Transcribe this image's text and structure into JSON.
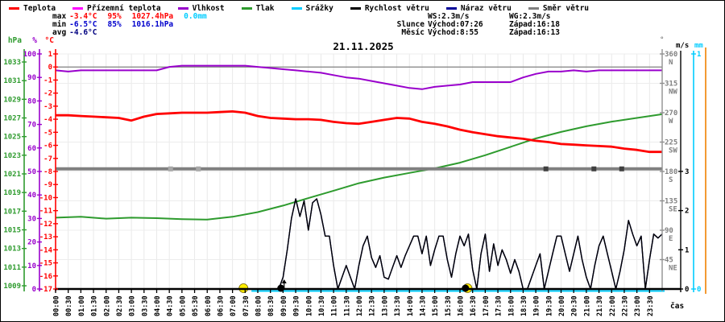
{
  "title": "21.11.2025",
  "xlabel": "čas",
  "legend": {
    "items": [
      {
        "label": "Teplota",
        "color": "#ff0000"
      },
      {
        "label": "Přízemní teplota",
        "color": "#ff00ff"
      },
      {
        "label": "Vlhkost",
        "color": "#9900cc"
      },
      {
        "label": "Tlak",
        "color": "#2e9b2e"
      },
      {
        "label": "Srážky",
        "color": "#00ccff"
      },
      {
        "label": "Rychlost větru",
        "color": "#000000"
      },
      {
        "label": "Náraz větru",
        "color": "#000099"
      },
      {
        "label": "Směr větru",
        "color": "#808080"
      }
    ]
  },
  "stats": {
    "rows": [
      {
        "label": "max",
        "cells": [
          {
            "text": "-3.4°C",
            "color": "#ff0000"
          },
          {
            "text": "95%",
            "color": "#ff0000"
          },
          {
            "text": "1027.4hPa",
            "color": "#ff0000"
          },
          {
            "text": "0.0mm",
            "color": "#00ccff"
          }
        ]
      },
      {
        "label": "min",
        "cells": [
          {
            "text": "-6.5°C",
            "color": "#0000cc"
          },
          {
            "text": "85%",
            "color": "#0000cc"
          },
          {
            "text": "1016.1hPa",
            "color": "#0000cc"
          }
        ]
      },
      {
        "label": "avg",
        "cells": [
          {
            "text": "-4.6°C",
            "color": "#000080"
          }
        ]
      }
    ]
  },
  "astro": {
    "wind": {
      "ws": "WS:2.3m/s",
      "wg": "WG:2.3m/s"
    },
    "rows": [
      {
        "label": "Slunce",
        "rise": "Východ:07:26",
        "set": "Západ:16:18"
      },
      {
        "label": "Měsíc",
        "rise": "Východ:8:55",
        "set": "Západ:16:13"
      }
    ]
  },
  "chart_data": {
    "type": "line",
    "title": "21.11.2025",
    "xlabel": "čas",
    "x_range_hours": [
      0,
      24
    ],
    "grid": true,
    "time_ticks": [
      "00:00",
      "00:30",
      "01:00",
      "01:30",
      "02:00",
      "02:30",
      "03:00",
      "03:30",
      "04:00",
      "04:30",
      "05:00",
      "05:30",
      "06:00",
      "06:30",
      "07:00",
      "07:30",
      "08:00",
      "08:30",
      "09:00",
      "09:30",
      "10:00",
      "10:30",
      "11:00",
      "11:30",
      "12:00",
      "12:30",
      "13:00",
      "13:30",
      "14:00",
      "14:30",
      "15:00",
      "15:30",
      "16:00",
      "16:30",
      "17:00",
      "17:30",
      "18:00",
      "18:30",
      "19:00",
      "19:30",
      "20:00",
      "20:30",
      "21:00",
      "21:30",
      "22:00",
      "22:30",
      "23:00",
      "23:30"
    ],
    "axes": {
      "hpa": {
        "unit": "hPa",
        "color": "#2e9b2e",
        "ticks": [
          1009,
          1011,
          1013,
          1015,
          1017,
          1019,
          1021,
          1023,
          1025,
          1027,
          1029,
          1031,
          1033
        ]
      },
      "pct": {
        "unit": "%",
        "color": "#9900cc",
        "ticks": [
          0,
          10,
          20,
          30,
          40,
          50,
          60,
          70,
          80,
          90,
          100
        ]
      },
      "degc": {
        "unit": "°C",
        "color": "#ff0000",
        "ticks": [
          1,
          0,
          -1,
          -2,
          -3,
          -4,
          -5,
          -6,
          -7,
          -8,
          -9,
          -10,
          -11,
          -12,
          -13,
          -14,
          -15,
          -16,
          -17
        ]
      },
      "dir": {
        "unit": "°",
        "color": "#808080",
        "ticks": [
          [
            360,
            "N"
          ],
          [
            315,
            "NW"
          ],
          [
            270,
            "W"
          ],
          [
            225,
            "SW"
          ],
          [
            180,
            "S"
          ],
          [
            135,
            "SE"
          ],
          [
            90,
            "E"
          ],
          [
            45,
            "NE"
          ]
        ]
      },
      "ms": {
        "unit": "m/s",
        "color": "#000000",
        "ticks": [
          0,
          1,
          2,
          3
        ]
      },
      "mm": {
        "unit": "mm",
        "color": "#00ccff",
        "ticks": [
          0,
          1
        ]
      }
    },
    "series": [
      {
        "name": "Teplota",
        "unit": "°C",
        "color": "#ff0000",
        "width": 2.8,
        "interval_minutes": 30,
        "values": [
          -3.7,
          -3.7,
          -3.75,
          -3.8,
          -3.85,
          -3.9,
          -4.1,
          -3.8,
          -3.6,
          -3.55,
          -3.5,
          -3.5,
          -3.5,
          -3.45,
          -3.4,
          -3.5,
          -3.75,
          -3.9,
          -3.95,
          -4.0,
          -4.0,
          -4.05,
          -4.2,
          -4.3,
          -4.35,
          -4.2,
          -4.05,
          -3.9,
          -3.95,
          -4.2,
          -4.35,
          -4.55,
          -4.8,
          -5.0,
          -5.15,
          -5.3,
          -5.4,
          -5.5,
          -5.65,
          -5.75,
          -5.9,
          -5.95,
          -6.0,
          -6.05,
          -6.1,
          -6.25,
          -6.35,
          -6.5,
          -6.5
        ]
      },
      {
        "name": "Vlhkost",
        "unit": "%",
        "color": "#9900cc",
        "width": 2,
        "interval_minutes": 30,
        "values": [
          93,
          92.5,
          93,
          93,
          93,
          93,
          93,
          93,
          93,
          94.5,
          95,
          95,
          95,
          95,
          95,
          95,
          94.5,
          94,
          93.5,
          93,
          92.5,
          92,
          91,
          90,
          89.5,
          88.5,
          87.5,
          86.5,
          85.5,
          85,
          86,
          86.5,
          87,
          88,
          88,
          88,
          88,
          90,
          91.5,
          92.5,
          92.5,
          93,
          92.5,
          93,
          93,
          93,
          93,
          93,
          93
        ]
      },
      {
        "name": "Tlak",
        "unit": "hPa",
        "color": "#2e9b2e",
        "width": 2,
        "interval_minutes": 60,
        "values": [
          1016.3,
          1016.4,
          1016.2,
          1016.3,
          1016.25,
          1016.15,
          1016.1,
          1016.4,
          1016.9,
          1017.6,
          1018.4,
          1019.2,
          1020.0,
          1020.6,
          1021.1,
          1021.6,
          1022.2,
          1023.0,
          1023.9,
          1024.8,
          1025.5,
          1026.1,
          1026.6,
          1027.0,
          1027.4
        ]
      },
      {
        "name": "Náraz větru",
        "unit": "m/s",
        "color": "#000099",
        "width": 1.4,
        "interval_minutes": 10,
        "same_as": "Rychlost větru"
      },
      {
        "name": "Rychlost větru",
        "unit": "m/s",
        "color": "#000000",
        "width": 1.4,
        "interval_minutes": 10,
        "values": [
          0,
          0,
          0,
          0,
          0,
          0,
          0,
          0,
          0,
          0,
          0,
          0,
          0,
          0,
          0,
          0,
          0,
          0,
          0,
          0,
          0,
          0,
          0,
          0,
          0,
          0,
          0,
          0,
          0,
          0,
          0,
          0,
          0,
          0,
          0,
          0,
          0,
          0,
          0,
          0,
          0,
          0,
          0,
          0,
          0,
          0,
          0,
          0,
          0,
          0,
          0,
          0,
          0,
          0,
          0.3,
          1.0,
          1.8,
          2.3,
          1.85,
          2.25,
          1.5,
          2.2,
          2.3,
          1.9,
          1.35,
          1.35,
          0.6,
          0,
          0.3,
          0.6,
          0.3,
          0,
          0.6,
          1.1,
          1.35,
          0.8,
          0.55,
          0.85,
          0.3,
          0.25,
          0.55,
          0.85,
          0.55,
          0.85,
          1.1,
          1.35,
          1.35,
          0.9,
          1.35,
          0.6,
          1.0,
          1.35,
          1.35,
          0.75,
          0.3,
          0.9,
          1.35,
          1.1,
          1.4,
          0.5,
          0,
          0.9,
          1.4,
          0.45,
          1.15,
          0.6,
          1.0,
          0.75,
          0.4,
          0.75,
          0.45,
          0,
          0,
          0.3,
          0.6,
          0.9,
          0,
          0.45,
          0.9,
          1.35,
          1.35,
          0.9,
          0.45,
          0.9,
          1.35,
          0.75,
          0.3,
          0,
          0.6,
          1.1,
          1.35,
          0.9,
          0.45,
          0,
          0.45,
          1.0,
          1.75,
          1.4,
          1.1,
          1.35,
          0,
          0.75,
          1.4,
          1.3,
          1.4
        ]
      },
      {
        "name": "Směr větru",
        "unit": "°",
        "color": "#808080",
        "width": 4,
        "constant": 184
      },
      {
        "name": "Srážky",
        "unit": "mm",
        "color": "#00ccff",
        "width": 2,
        "constant": 0,
        "start_hour": 7.75
      },
      {
        "name": "Přízemní teplota",
        "unit": "°C",
        "color": "#ff00ff",
        "not_plotted": true
      }
    ],
    "direction_markers": {
      "light": {
        "color": "#a8a8a8",
        "hours": [
          4.55,
          5.65
        ]
      },
      "dark": {
        "color": "#404040",
        "hours": [
          19.4,
          21.3,
          22.4
        ]
      }
    },
    "astro_markers": {
      "sun": {
        "rise": "07:26",
        "set": "16:18",
        "color": "#ffee00"
      },
      "moon": {
        "rise": "8:55",
        "set": "16:13",
        "color": "#000000"
      }
    }
  }
}
